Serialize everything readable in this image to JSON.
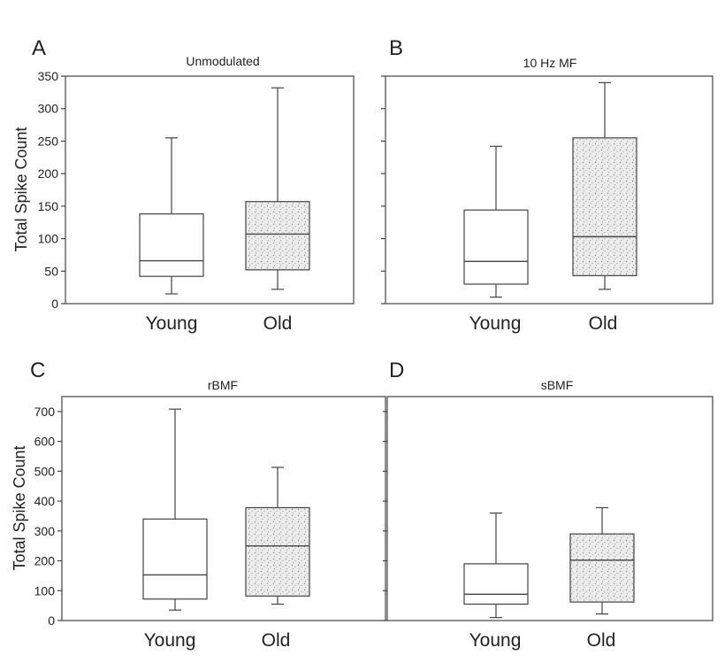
{
  "figure": {
    "ylabel": "Total Spike Count",
    "colors": {
      "young_fill": "#ffffff",
      "old_fill": "#ececec",
      "old_stipple": "#9a9a9a",
      "line": "#444444"
    }
  },
  "chart_data": [
    {
      "type": "box",
      "panel": "A",
      "title": "Unmodulated",
      "ylabel": "Total Spike Count",
      "ylim": [
        0,
        350
      ],
      "yticks": [
        0,
        50,
        100,
        150,
        200,
        250,
        300,
        350
      ],
      "show_tick_labels": true,
      "categories": [
        "Young",
        "Old"
      ],
      "boxes": [
        {
          "name": "Young",
          "min": 15,
          "q1": 42,
          "median": 66,
          "q3": 138,
          "max": 255
        },
        {
          "name": "Old",
          "min": 22,
          "q1": 52,
          "median": 107,
          "q3": 157,
          "max": 332
        }
      ]
    },
    {
      "type": "box",
      "panel": "B",
      "title": "10 Hz MF",
      "ylabel": "",
      "ylim": [
        0,
        350
      ],
      "yticks": [
        0,
        50,
        100,
        150,
        200,
        250,
        300,
        350
      ],
      "show_tick_labels": false,
      "categories": [
        "Young",
        "Old"
      ],
      "boxes": [
        {
          "name": "Young",
          "min": 10,
          "q1": 30,
          "median": 65,
          "q3": 144,
          "max": 242
        },
        {
          "name": "Old",
          "min": 22,
          "q1": 43,
          "median": 103,
          "q3": 255,
          "max": 340
        }
      ]
    },
    {
      "type": "box",
      "panel": "C",
      "title": "rBMF",
      "ylabel": "Total Spike Count",
      "ylim": [
        0,
        750
      ],
      "yticks": [
        0,
        100,
        200,
        300,
        400,
        500,
        600,
        700
      ],
      "show_tick_labels": true,
      "categories": [
        "Young",
        "Old"
      ],
      "boxes": [
        {
          "name": "Young",
          "min": 35,
          "q1": 72,
          "median": 153,
          "q3": 340,
          "max": 708
        },
        {
          "name": "Old",
          "min": 55,
          "q1": 82,
          "median": 250,
          "q3": 378,
          "max": 513
        }
      ]
    },
    {
      "type": "box",
      "panel": "D",
      "title": "sBMF",
      "ylabel": "",
      "ylim": [
        0,
        750
      ],
      "yticks": [
        0,
        100,
        200,
        300,
        400,
        500,
        600,
        700
      ],
      "show_tick_labels": false,
      "categories": [
        "Young",
        "Old"
      ],
      "boxes": [
        {
          "name": "Young",
          "min": 10,
          "q1": 55,
          "median": 88,
          "q3": 190,
          "max": 360
        },
        {
          "name": "Old",
          "min": 22,
          "q1": 62,
          "median": 202,
          "q3": 290,
          "max": 378
        }
      ]
    }
  ]
}
